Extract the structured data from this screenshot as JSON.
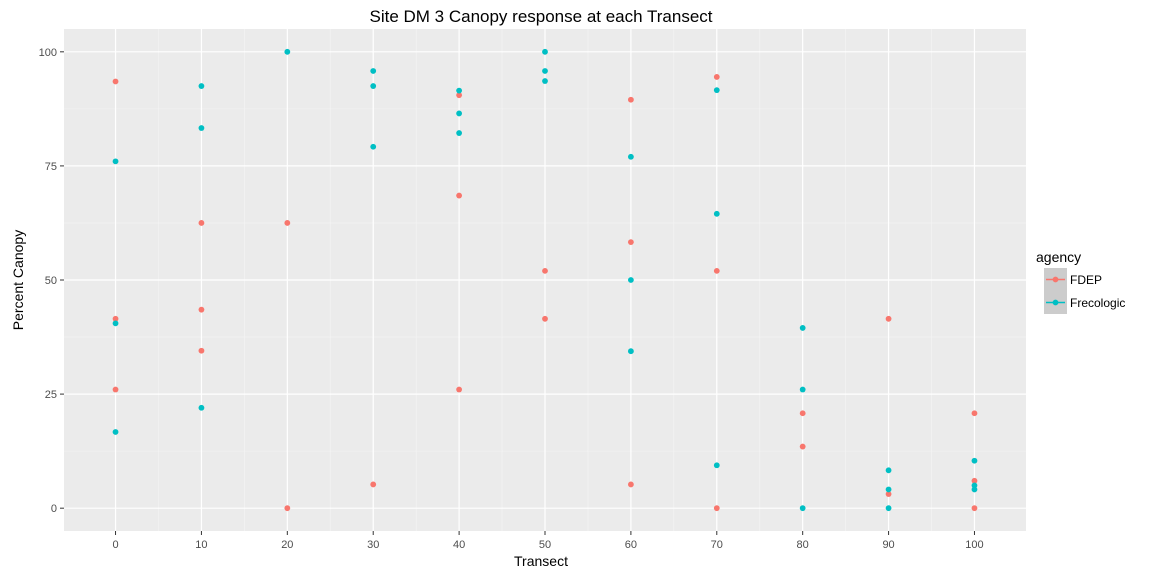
{
  "chart_data": {
    "type": "scatter",
    "title": "Site DM 3 Canopy response at each Transect",
    "xlabel": "Transect",
    "ylabel": "Percent Canopy",
    "xlim": [
      -6,
      106
    ],
    "ylim": [
      -5,
      105
    ],
    "x_ticks": [
      0,
      10,
      20,
      30,
      40,
      50,
      60,
      70,
      80,
      90,
      100
    ],
    "y_ticks": [
      0,
      25,
      50,
      75,
      100
    ],
    "grid": true,
    "legend": {
      "title": "agency",
      "position": "right"
    },
    "series": [
      {
        "name": "FDEP",
        "color": "#F8766D",
        "points": [
          [
            0,
            93.5
          ],
          [
            0,
            41.5
          ],
          [
            0,
            26
          ],
          [
            10,
            62.5
          ],
          [
            10,
            43.5
          ],
          [
            10,
            34.5
          ],
          [
            20,
            62.5
          ],
          [
            20,
            0
          ],
          [
            30,
            5.2
          ],
          [
            40,
            90.5
          ],
          [
            40,
            68.5
          ],
          [
            40,
            26
          ],
          [
            50,
            52
          ],
          [
            50,
            41.5
          ],
          [
            60,
            89.5
          ],
          [
            60,
            58.3
          ],
          [
            60,
            5.2
          ],
          [
            70,
            94.5
          ],
          [
            70,
            52
          ],
          [
            70,
            0
          ],
          [
            80,
            20.8
          ],
          [
            80,
            13.5
          ],
          [
            90,
            41.5
          ],
          [
            90,
            3.1
          ],
          [
            100,
            20.8
          ],
          [
            100,
            6
          ],
          [
            100,
            0
          ]
        ]
      },
      {
        "name": "Frecologic",
        "color": "#00BFC4",
        "points": [
          [
            0,
            76
          ],
          [
            0,
            40.5
          ],
          [
            0,
            16.7
          ],
          [
            10,
            92.5
          ],
          [
            10,
            83.3
          ],
          [
            10,
            22
          ],
          [
            20,
            100
          ],
          [
            30,
            95.8
          ],
          [
            30,
            92.5
          ],
          [
            30,
            79.2
          ],
          [
            40,
            91.5
          ],
          [
            40,
            86.5
          ],
          [
            40,
            82.2
          ],
          [
            50,
            100
          ],
          [
            50,
            95.8
          ],
          [
            50,
            93.6
          ],
          [
            60,
            77
          ],
          [
            60,
            50
          ],
          [
            60,
            34.4
          ],
          [
            70,
            91.6
          ],
          [
            70,
            64.5
          ],
          [
            70,
            9.4
          ],
          [
            80,
            39.5
          ],
          [
            80,
            26
          ],
          [
            80,
            0
          ],
          [
            90,
            8.3
          ],
          [
            90,
            4.1
          ],
          [
            90,
            0
          ],
          [
            100,
            10.4
          ],
          [
            100,
            5
          ],
          [
            100,
            4.1
          ]
        ]
      }
    ]
  }
}
